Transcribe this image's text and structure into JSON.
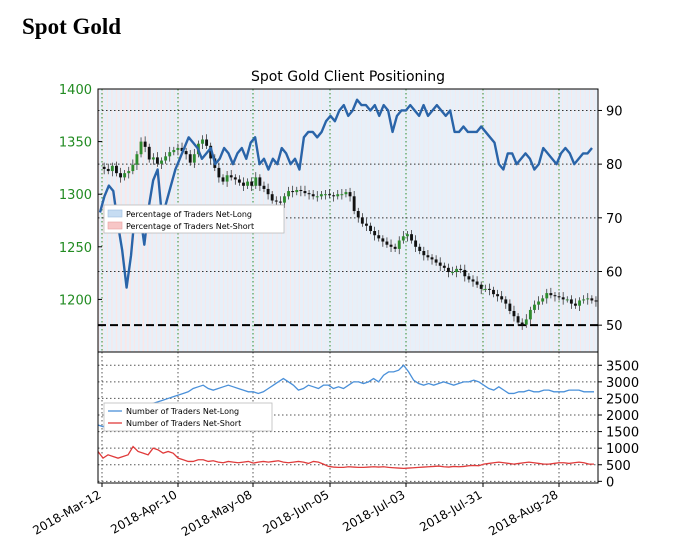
{
  "page": {
    "title": "Spot Gold"
  },
  "chart_data": [
    {
      "type": "candlestick",
      "title": "Spot Gold Client Positioning",
      "x_ticks": [
        "2018-Mar-12",
        "2018-Apr-10",
        "2018-May-08",
        "2018-Jun-05",
        "2018-Jul-03",
        "2018-Jul-31",
        "2018-Aug-28"
      ],
      "price_axis": {
        "ticks": [
          1200,
          1250,
          1300,
          1350,
          1400
        ],
        "ylim": [
          1150,
          1400
        ],
        "color": "#228b22"
      },
      "percent_axis": {
        "ticks": [
          50,
          60,
          70,
          80,
          90
        ],
        "ylim": [
          45,
          94
        ]
      },
      "reference_line": 50,
      "legend": {
        "placement": "center-left",
        "entries": [
          "Percentage of Traders Net-Long",
          "Percentage of Traders Net-Short"
        ],
        "colors": [
          "#c6dcf2",
          "#f7c6c6"
        ]
      },
      "series": [
        {
          "name": "Percentage of Traders Net-Long",
          "color": "#2a64a8",
          "values": [
            71,
            74,
            76,
            75,
            69,
            64,
            57,
            63,
            72,
            71,
            65,
            72,
            77,
            79,
            70,
            73,
            76,
            79,
            81,
            83,
            85,
            84,
            83,
            81,
            82,
            83,
            80,
            81,
            83,
            82,
            80,
            82,
            83,
            81,
            84,
            85,
            80,
            81,
            79,
            81,
            80,
            83,
            82,
            80,
            81,
            79,
            85,
            86,
            86,
            85,
            86,
            88,
            89,
            88,
            90,
            91,
            89,
            90,
            92,
            91,
            91,
            90,
            91,
            89,
            91,
            90,
            86,
            89,
            90,
            90,
            91,
            90,
            89,
            91,
            89,
            90,
            91,
            90,
            89,
            90,
            86,
            86,
            87,
            86,
            86,
            86,
            87,
            86,
            85,
            84,
            80,
            79,
            82,
            82,
            80,
            81,
            82,
            81,
            79,
            80,
            83,
            82,
            81,
            80,
            82,
            83,
            82,
            80,
            81,
            82,
            82,
            83
          ]
        },
        {
          "name": "Spot Gold",
          "values": [
            1326,
            1324,
            1322,
            1327,
            1320,
            1316,
            1320,
            1322,
            1328,
            1338,
            1350,
            1345,
            1333,
            1335,
            1329,
            1332,
            1336,
            1340,
            1342,
            1344,
            1341,
            1338,
            1330,
            1338,
            1348,
            1352,
            1346,
            1334,
            1325,
            1316,
            1312,
            1318,
            1316,
            1314,
            1311,
            1308,
            1312,
            1308,
            1316,
            1308,
            1305,
            1300,
            1294,
            1293,
            1292,
            1298,
            1303,
            1302,
            1304,
            1303,
            1301,
            1300,
            1298,
            1298,
            1300,
            1300,
            1299,
            1298,
            1300,
            1300,
            1302,
            1298,
            1284,
            1278,
            1272,
            1270,
            1265,
            1261,
            1258,
            1255,
            1252,
            1250,
            1248,
            1256,
            1260,
            1262,
            1256,
            1250,
            1246,
            1242,
            1240,
            1238,
            1235,
            1232,
            1230,
            1226,
            1226,
            1229,
            1228,
            1222,
            1219,
            1217,
            1214,
            1210,
            1210,
            1209,
            1205,
            1203,
            1200,
            1196,
            1189,
            1184,
            1178,
            1176,
            1181,
            1190,
            1195,
            1198,
            1201,
            1206,
            1204,
            1203,
            1202,
            1200,
            1200,
            1196,
            1194,
            1199,
            1200,
            1201,
            1199,
            1198
          ]
        }
      ]
    },
    {
      "type": "line",
      "yticks": [
        0,
        500,
        1000,
        1500,
        2000,
        2500,
        3000,
        3500
      ],
      "ylim": [
        -50,
        3900
      ],
      "legend": {
        "placement": "center-left",
        "entries": [
          "Number of Traders Net-Long",
          "Number of Traders Net-Short"
        ]
      },
      "series": [
        {
          "name": "Number of Traders Net-Long",
          "color": "#4a90d9",
          "values": [
            1700,
            1650,
            1750,
            1800,
            1900,
            2000,
            2050,
            2100,
            2200,
            2250,
            2300,
            2350,
            2400,
            2450,
            2500,
            2550,
            2600,
            2650,
            2700,
            2800,
            2850,
            2900,
            2800,
            2750,
            2800,
            2850,
            2900,
            2850,
            2800,
            2750,
            2700,
            2700,
            2650,
            2700,
            2800,
            2900,
            3000,
            3100,
            3000,
            2900,
            2750,
            2800,
            2900,
            2850,
            2800,
            2900,
            2900,
            2800,
            2850,
            2800,
            2900,
            3000,
            3000,
            2950,
            3000,
            3100,
            3000,
            3200,
            3300,
            3300,
            3350,
            3500,
            3300,
            3050,
            2950,
            2900,
            2950,
            2900,
            2950,
            3000,
            2950,
            2900,
            2950,
            3000,
            3000,
            3050,
            3000,
            2900,
            2800,
            2750,
            2850,
            2750,
            2650,
            2650,
            2700,
            2700,
            2750,
            2700,
            2700,
            2750,
            2750,
            2700,
            2700,
            2700,
            2750,
            2750,
            2750,
            2700,
            2700,
            2700
          ]
        },
        {
          "name": "Number of Traders Net-Short",
          "color": "#e03b3b",
          "values": [
            900,
            700,
            800,
            750,
            700,
            750,
            800,
            1050,
            900,
            850,
            800,
            1000,
            950,
            850,
            900,
            850,
            700,
            650,
            600,
            600,
            650,
            650,
            600,
            620,
            580,
            560,
            600,
            580,
            560,
            580,
            600,
            550,
            580,
            600,
            580,
            600,
            620,
            580,
            560,
            580,
            600,
            580,
            540,
            600,
            580,
            520,
            450,
            430,
            420,
            420,
            440,
            430,
            420,
            420,
            430,
            440,
            430,
            440,
            420,
            410,
            400,
            390,
            400,
            410,
            420,
            430,
            440,
            450,
            460,
            440,
            430,
            450,
            440,
            450,
            470,
            480,
            470,
            520,
            540,
            560,
            580,
            560,
            540,
            520,
            540,
            560,
            580,
            560,
            540,
            520,
            520,
            540,
            560,
            560,
            540,
            560,
            580,
            560,
            520,
            520
          ]
        }
      ]
    }
  ]
}
